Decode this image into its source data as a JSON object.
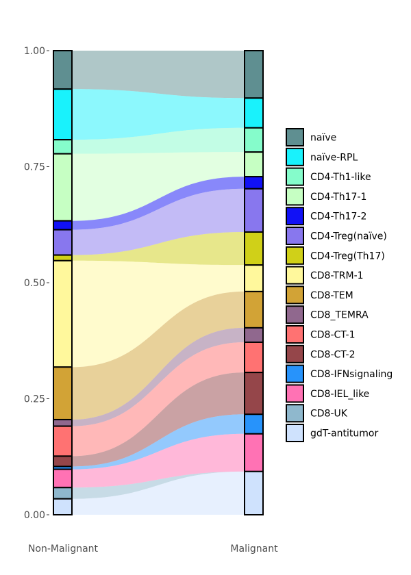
{
  "chart_data": {
    "type": "alluvial",
    "title": "",
    "xlabel": "",
    "ylabel": "",
    "ylim": [
      0,
      1
    ],
    "y_ticks": [
      "0.00",
      "0.25",
      "0.50",
      "0.75",
      "1.00"
    ],
    "y_tick_values": [
      0,
      0.25,
      0.5,
      0.75,
      1.0
    ],
    "categories": [
      "Non-Malignant",
      "Malignant"
    ],
    "legend_position": "right",
    "grid": false,
    "series": [
      {
        "name": "naïve",
        "color": "#5f8f91",
        "values": [
          0.082,
          0.102
        ]
      },
      {
        "name": "naïve-RPL",
        "color": "#19f2fc",
        "values": [
          0.108,
          0.064
        ]
      },
      {
        "name": "CD4-Th1-like",
        "color": "#85fccb",
        "values": [
          0.03,
          0.052
        ]
      },
      {
        "name": "CD4-Th17-1",
        "color": "#c6ffc3",
        "values": [
          0.143,
          0.053
        ]
      },
      {
        "name": "CD4-Th17-2",
        "color": "#1111f6",
        "values": [
          0.019,
          0.026
        ]
      },
      {
        "name": "CD4-Treg(naïve)",
        "color": "#8877ee",
        "values": [
          0.054,
          0.093
        ]
      },
      {
        "name": "CD4-Treg(Th17)",
        "color": "#d0d018",
        "values": [
          0.012,
          0.071
        ]
      },
      {
        "name": "CD8-TRM-1",
        "color": "#fff89c",
        "values": [
          0.227,
          0.057
        ]
      },
      {
        "name": "CD8-TEM",
        "color": "#d2a336",
        "values": [
          0.112,
          0.078
        ]
      },
      {
        "name": "CD8_TEMRA",
        "color": "#90688e",
        "values": [
          0.014,
          0.031
        ]
      },
      {
        "name": "CD8-CT-1",
        "color": "#ff7272",
        "values": [
          0.064,
          0.065
        ]
      },
      {
        "name": "CD8-CT-2",
        "color": "#95464a",
        "values": [
          0.022,
          0.09
        ]
      },
      {
        "name": "CD8-IFNsignaling",
        "color": "#2793fb",
        "values": [
          0.006,
          0.042
        ]
      },
      {
        "name": "CD8-IEL_like",
        "color": "#ff72b4",
        "values": [
          0.039,
          0.081
        ]
      },
      {
        "name": "CD8-UK",
        "color": "#8fb8cd",
        "values": [
          0.024,
          0.0
        ]
      },
      {
        "name": "gdT-antitumor",
        "color": "#cfe2fd",
        "values": [
          0.034,
          0.093
        ]
      }
    ]
  }
}
